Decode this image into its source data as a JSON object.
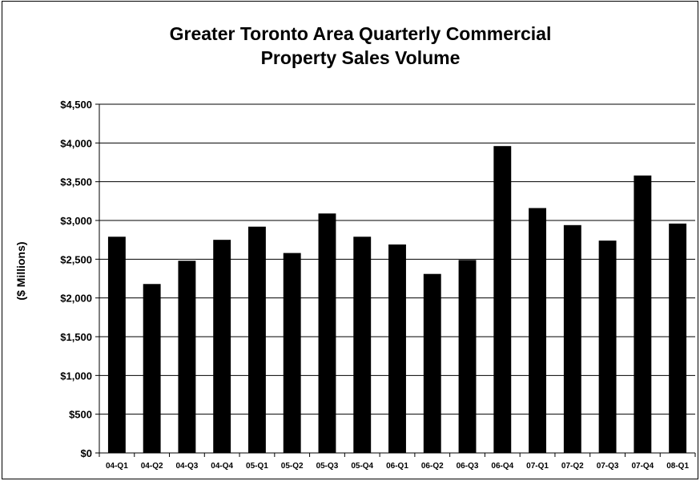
{
  "chart_data": {
    "type": "bar",
    "title_lines": [
      "Greater Toronto Area Quarterly Commercial",
      "Property Sales Volume"
    ],
    "ylabel": "($ Millions)",
    "xlabel": "",
    "ylim": [
      0,
      4500
    ],
    "ytick_step": 500,
    "ytick_labels": [
      "$0",
      "$500",
      "$1,000",
      "$1,500",
      "$2,000",
      "$2,500",
      "$3,000",
      "$3,500",
      "$4,000",
      "$4,500"
    ],
    "grid": true,
    "legend": "none",
    "bar_color": "#000000",
    "categories": [
      "04-Q1",
      "04-Q2",
      "04-Q3",
      "04-Q4",
      "05-Q1",
      "05-Q2",
      "05-Q3",
      "05-Q4",
      "06-Q1",
      "06-Q2",
      "06-Q3",
      "06-Q4",
      "07-Q1",
      "07-Q2",
      "07-Q3",
      "07-Q4",
      "08-Q1"
    ],
    "values": [
      2790,
      2180,
      2480,
      2750,
      2920,
      2580,
      3090,
      2790,
      2690,
      2310,
      2490,
      3960,
      3160,
      2940,
      2740,
      3580,
      2960
    ]
  }
}
